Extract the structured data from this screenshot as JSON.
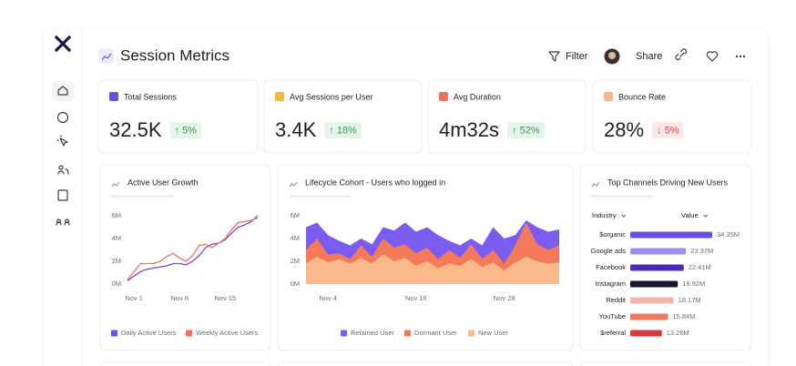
{
  "header": {
    "title": "Session Metrics",
    "actions": [
      "Filter",
      "Share"
    ]
  },
  "kpis": [
    {
      "label": "Total Sessions",
      "value": "32.5K",
      "change": "↑ 5%",
      "trend": "up",
      "color": "#6c4ee3"
    },
    {
      "label": "Avg Sessions per User",
      "value": "3.4K",
      "change": "↑ 18%",
      "trend": "up",
      "color": "#f2b93b"
    },
    {
      "label": "Avg Duration",
      "value": "4m32s",
      "change": "↑ 52%",
      "trend": "up",
      "color": "#f0735a"
    },
    {
      "label": "Bounce Rate",
      "value": "28%",
      "change": "↓ 5%",
      "trend": "down",
      "color": "#f7b98a"
    }
  ],
  "chart_data": [
    {
      "type": "line",
      "title": "Active User Growth",
      "categories": [
        null,
        "Nov 1",
        null,
        null,
        null,
        null,
        null,
        null,
        "Nov 8",
        null,
        null,
        null,
        null,
        null,
        null,
        "Nov 15",
        null,
        null,
        null,
        null,
        null
      ],
      "series": [
        {
          "name": "Daily Active Users",
          "color": "#6c4ee3",
          "values": [
            300000,
            700000,
            1100000,
            1300000,
            1400000,
            1500000,
            1600000,
            1800000,
            1800000,
            1700000,
            2000000,
            2500000,
            3200000,
            3500000,
            3600000,
            3900000,
            4500000,
            5000000,
            5200000,
            5500000,
            6000000
          ]
        },
        {
          "name": "Weekly Active Users",
          "color": "#f0735a",
          "values": [
            400000,
            1100000,
            1800000,
            1800000,
            1800000,
            2000000,
            2400000,
            2700000,
            2300000,
            2000000,
            2500000,
            3400000,
            3500000,
            3200000,
            3600000,
            4000000,
            4800000,
            5400000,
            5500000,
            5600000,
            5800000
          ]
        }
      ],
      "ylim": [
        0,
        6000000
      ],
      "yticks": [
        {
          "value": 0,
          "label": "0M"
        },
        {
          "value": 2000000,
          "label": "2M"
        },
        {
          "value": 4000000,
          "label": "4M"
        },
        {
          "value": 6000000,
          "label": "6M"
        }
      ]
    },
    {
      "type": "area",
      "title": "Lifecycle Cohort - Users who logged in",
      "categories": [
        null,
        null,
        "Nov 4",
        null,
        null,
        null,
        null,
        null,
        null,
        null,
        "Nov 16",
        null,
        null,
        null,
        null,
        null,
        null,
        null,
        "Nov 28",
        null,
        null,
        null,
        null,
        null
      ],
      "series": [
        {
          "name": "Retained User",
          "color": "#7b5cf0",
          "values": [
            5000000,
            5400000,
            4300000,
            3800000,
            3400000,
            4000000,
            3500000,
            5000000,
            4700000,
            5400000,
            4600000,
            5000000,
            4300000,
            3800000,
            3400000,
            4000000,
            3400000,
            5000000,
            4000000,
            4300000,
            5600000,
            5000000,
            4600000,
            4800000
          ]
        },
        {
          "name": "Dormant User",
          "color": "#f47a5a",
          "values": [
            3000000,
            4000000,
            2600000,
            2700000,
            2200000,
            3400000,
            2400000,
            4000000,
            3200000,
            3500000,
            2700000,
            3200000,
            2200000,
            3000000,
            2300000,
            3500000,
            2200000,
            3000000,
            1800000,
            3400000,
            5400000,
            3500000,
            3000000,
            3400000
          ]
        },
        {
          "name": "New User",
          "color": "#f9b98a",
          "values": [
            1800000,
            2400000,
            1900000,
            2200000,
            1800000,
            2300000,
            1800000,
            2600000,
            2000000,
            2300000,
            1600000,
            2000000,
            1400000,
            1800000,
            1600000,
            2200000,
            1500000,
            1900000,
            1200000,
            1900000,
            2400000,
            2000000,
            1800000,
            1900000
          ]
        }
      ],
      "ylim": [
        0,
        6000000
      ],
      "yticks": [
        {
          "value": 0,
          "label": "0M"
        },
        {
          "value": 2000000,
          "label": "2M"
        },
        {
          "value": 4000000,
          "label": "4M"
        },
        {
          "value": 6000000,
          "label": "6M"
        }
      ]
    },
    {
      "type": "bar",
      "title": "Top Channels Driving New Users",
      "orientation": "horizontal",
      "column_headers": [
        "Industry",
        "Value"
      ],
      "categories": [
        "$organic",
        "Google ads",
        "Facebook",
        "Instagram",
        "Reddit",
        "YouTube",
        "$referral"
      ],
      "values": [
        34350000,
        23370000,
        22410000,
        19920000,
        18170000,
        15840000,
        13260000
      ],
      "value_labels": [
        "34.35M",
        "23.37M",
        "22.41M",
        "19.92M",
        "18.17M",
        "15.84M",
        "13.26M"
      ],
      "colors": [
        "#6c4ee3",
        "#a08ef0",
        "#4a2bb5",
        "#1b1530",
        "#f2b3a8",
        "#f07860",
        "#d63a3a"
      ]
    }
  ]
}
